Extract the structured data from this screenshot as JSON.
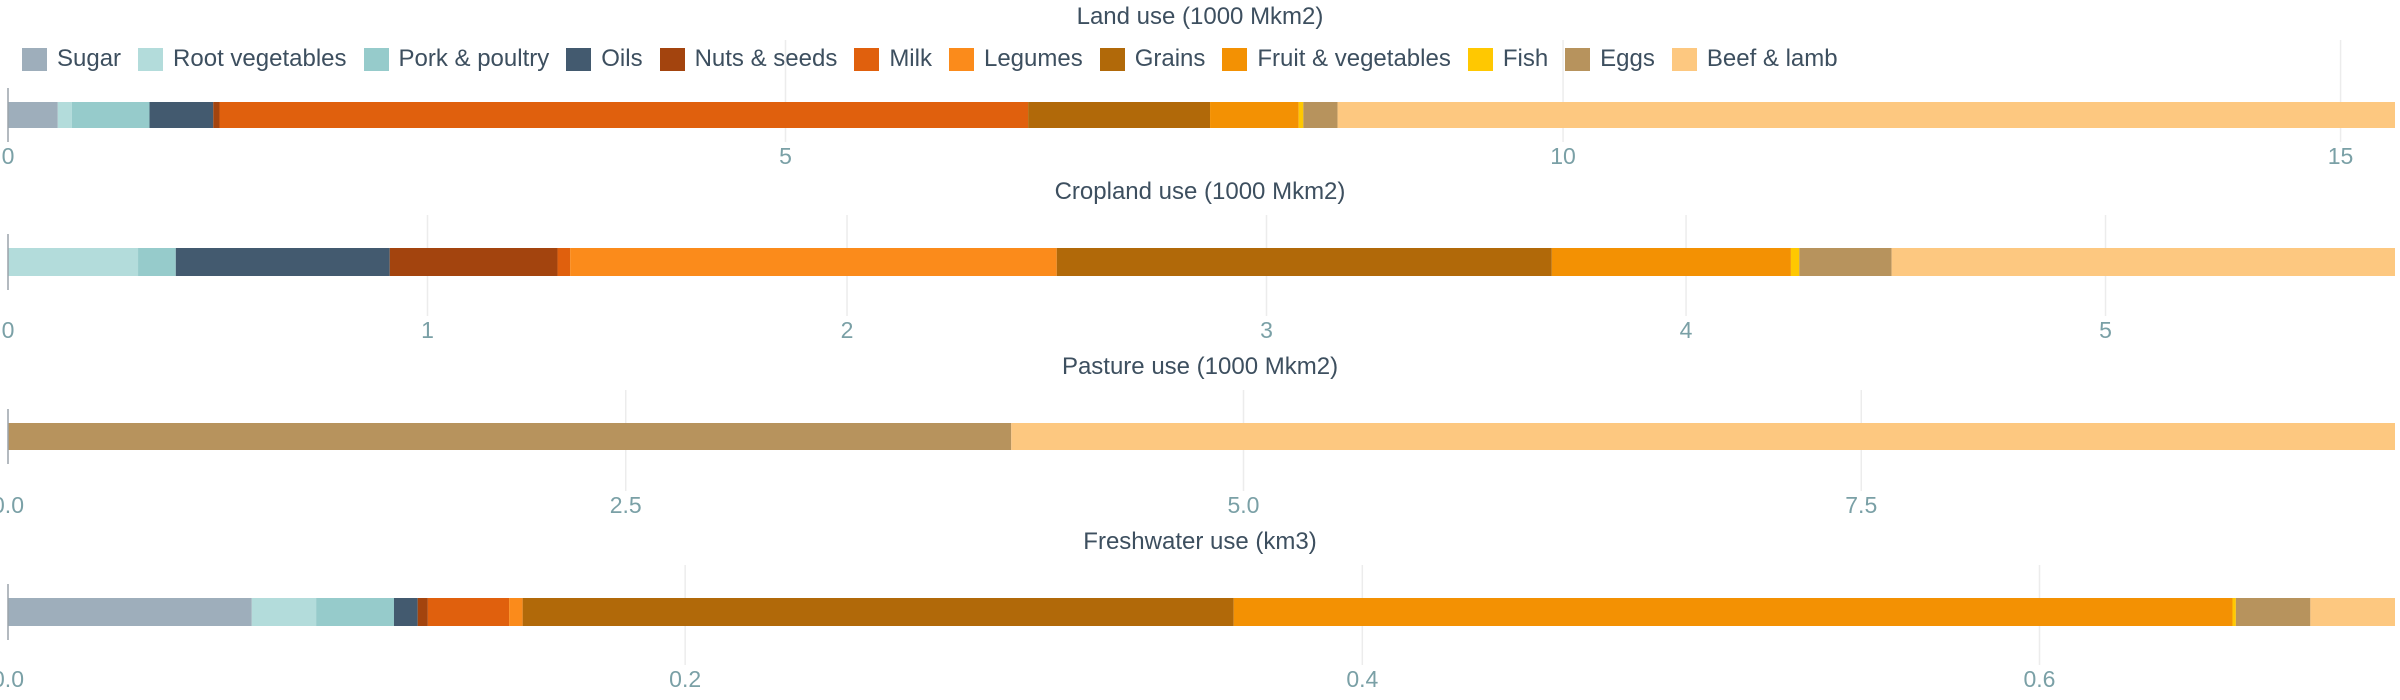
{
  "categories": [
    "Sugar",
    "Root vegetables",
    "Pork & poultry",
    "Oils",
    "Nuts & seeds",
    "Milk",
    "Legumes",
    "Grains",
    "Fruit & vegetables",
    "Fish",
    "Eggs",
    "Beef & lamb"
  ],
  "colors": {
    "Sugar": "#9eaebb",
    "Root vegetables": "#b3dcdb",
    "Pork & poultry": "#96cbcb",
    "Oils": "#435a6f",
    "Nuts & seeds": "#a3440e",
    "Milk": "#e0600d",
    "Legumes": "#fb8b1b",
    "Grains": "#b16909",
    "Fruit & vegetables": "#f39103",
    "Fish": "#ffc801",
    "Eggs": "#b7935d",
    "Beef & lamb": "#fdc880"
  },
  "chart_data": [
    {
      "type": "bar",
      "orientation": "horizontal-stacked",
      "title": "Land use (1000 Mkm2)",
      "xlim": [
        0,
        15.35
      ],
      "ticks": [
        0,
        5,
        10,
        15
      ],
      "tick_labels": [
        "0",
        "5",
        "10",
        "15"
      ],
      "grid": true,
      "series": [
        {
          "name": "Sugar",
          "value": 0.32
        },
        {
          "name": "Root vegetables",
          "value": 0.09
        },
        {
          "name": "Pork & poultry",
          "value": 0.5
        },
        {
          "name": "Oils",
          "value": 0.41
        },
        {
          "name": "Nuts & seeds",
          "value": 0.04
        },
        {
          "name": "Milk",
          "value": 5.2
        },
        {
          "name": "Legumes",
          "value": 0.0
        },
        {
          "name": "Grains",
          "value": 1.17
        },
        {
          "name": "Fruit & vegetables",
          "value": 0.57
        },
        {
          "name": "Fish",
          "value": 0.03
        },
        {
          "name": "Eggs",
          "value": 0.22
        },
        {
          "name": "Beef & lamb",
          "value": 6.8
        }
      ]
    },
    {
      "type": "bar",
      "orientation": "horizontal-stacked",
      "title": "Cropland use (1000 Mkm2)",
      "xlim": [
        0,
        5.69
      ],
      "ticks": [
        0,
        1,
        2,
        3,
        4,
        5
      ],
      "tick_labels": [
        "0",
        "1",
        "2",
        "3",
        "4",
        "5"
      ],
      "grid": true,
      "series": [
        {
          "name": "Sugar",
          "value": 0.0
        },
        {
          "name": "Root vegetables",
          "value": 0.31
        },
        {
          "name": "Pork & poultry",
          "value": 0.09
        },
        {
          "name": "Oils",
          "value": 0.51
        },
        {
          "name": "Nuts & seeds",
          "value": 0.4
        },
        {
          "name": "Milk",
          "value": 0.03
        },
        {
          "name": "Legumes",
          "value": 1.16
        },
        {
          "name": "Grains",
          "value": 1.18
        },
        {
          "name": "Fruit & vegetables",
          "value": 0.57
        },
        {
          "name": "Fish",
          "value": 0.02
        },
        {
          "name": "Eggs",
          "value": 0.22
        },
        {
          "name": "Beef & lamb",
          "value": 1.2
        }
      ]
    },
    {
      "type": "bar",
      "orientation": "horizontal-stacked",
      "title": "Pasture use (1000 Mkm2)",
      "xlim": [
        0,
        9.66
      ],
      "ticks": [
        0,
        2.5,
        5,
        7.5
      ],
      "tick_labels": [
        "0.0",
        "2.5",
        "5.0",
        "7.5"
      ],
      "grid": true,
      "series": [
        {
          "name": "Eggs",
          "value": 4.06
        },
        {
          "name": "Beef & lamb",
          "value": 5.6
        }
      ]
    },
    {
      "type": "bar",
      "orientation": "horizontal-stacked",
      "title": "Freshwater use (km3)",
      "xlim": [
        0,
        0.705
      ],
      "ticks": [
        0,
        0.2,
        0.4,
        0.6
      ],
      "tick_labels": [
        "0.0",
        "0.2",
        "0.4",
        "0.6"
      ],
      "grid": true,
      "series": [
        {
          "name": "Sugar",
          "value": 0.072
        },
        {
          "name": "Root vegetables",
          "value": 0.019
        },
        {
          "name": "Pork & poultry",
          "value": 0.023
        },
        {
          "name": "Oils",
          "value": 0.007
        },
        {
          "name": "Nuts & seeds",
          "value": 0.003
        },
        {
          "name": "Milk",
          "value": 0.024
        },
        {
          "name": "Legumes",
          "value": 0.004
        },
        {
          "name": "Grains",
          "value": 0.21
        },
        {
          "name": "Fruit & vegetables",
          "value": 0.295
        },
        {
          "name": "Fish",
          "value": 0.001
        },
        {
          "name": "Eggs",
          "value": 0.022
        },
        {
          "name": "Beef & lamb",
          "value": 0.025
        }
      ]
    }
  ]
}
